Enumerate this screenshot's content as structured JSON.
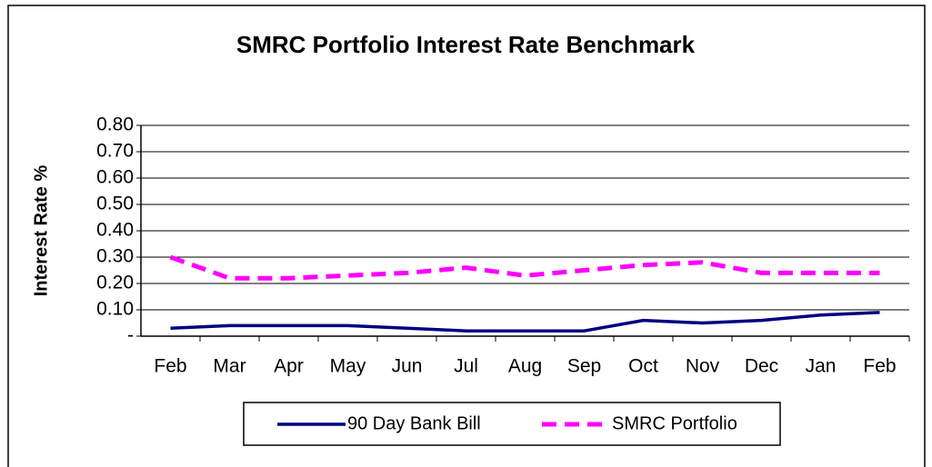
{
  "chart_data": {
    "type": "line",
    "title": "SMRC Portfolio Interest Rate Benchmark",
    "y_label": "Interest Rate %",
    "categories": [
      "Feb",
      "Mar",
      "Apr",
      "May",
      "Jun",
      "Jul",
      "Aug",
      "Sep",
      "Oct",
      "Nov",
      "Dec",
      "Jan",
      "Feb"
    ],
    "series": [
      {
        "name": "90 Day Bank Bill",
        "color": "#000080",
        "dash": "solid",
        "values": [
          0.03,
          0.04,
          0.04,
          0.04,
          0.03,
          0.02,
          0.02,
          0.02,
          0.06,
          0.05,
          0.06,
          0.08,
          0.09
        ]
      },
      {
        "name": "SMRC Portfolio",
        "color": "#ff00ff",
        "dash": "dashed",
        "values": [
          0.3,
          0.22,
          0.22,
          0.23,
          0.24,
          0.26,
          0.23,
          0.25,
          0.27,
          0.28,
          0.24,
          0.24,
          0.24
        ]
      }
    ],
    "ylim": [
      0,
      0.8
    ],
    "yticks": [
      {
        "value": 0,
        "label": "-"
      },
      {
        "value": 0.1,
        "label": "0.10"
      },
      {
        "value": 0.2,
        "label": "0.20"
      },
      {
        "value": 0.3,
        "label": "0.30"
      },
      {
        "value": 0.4,
        "label": "0.40"
      },
      {
        "value": 0.5,
        "label": "0.50"
      },
      {
        "value": 0.6,
        "label": "0.60"
      },
      {
        "value": 0.7,
        "label": "0.70"
      },
      {
        "value": 0.8,
        "label": "0.80"
      }
    ],
    "grid": true,
    "legend": "bottom"
  }
}
